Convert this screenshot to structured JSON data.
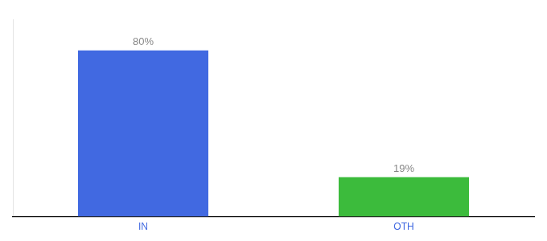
{
  "chart_data": {
    "type": "bar",
    "categories": [
      "IN",
      "OTH"
    ],
    "values": [
      80,
      19
    ],
    "value_labels": [
      "80%",
      "19%"
    ],
    "colors": [
      "#4169E1",
      "#3CBB3C"
    ],
    "ylim": [
      0,
      95
    ],
    "data_labels": true,
    "tick_labels": "x",
    "grid": false
  }
}
